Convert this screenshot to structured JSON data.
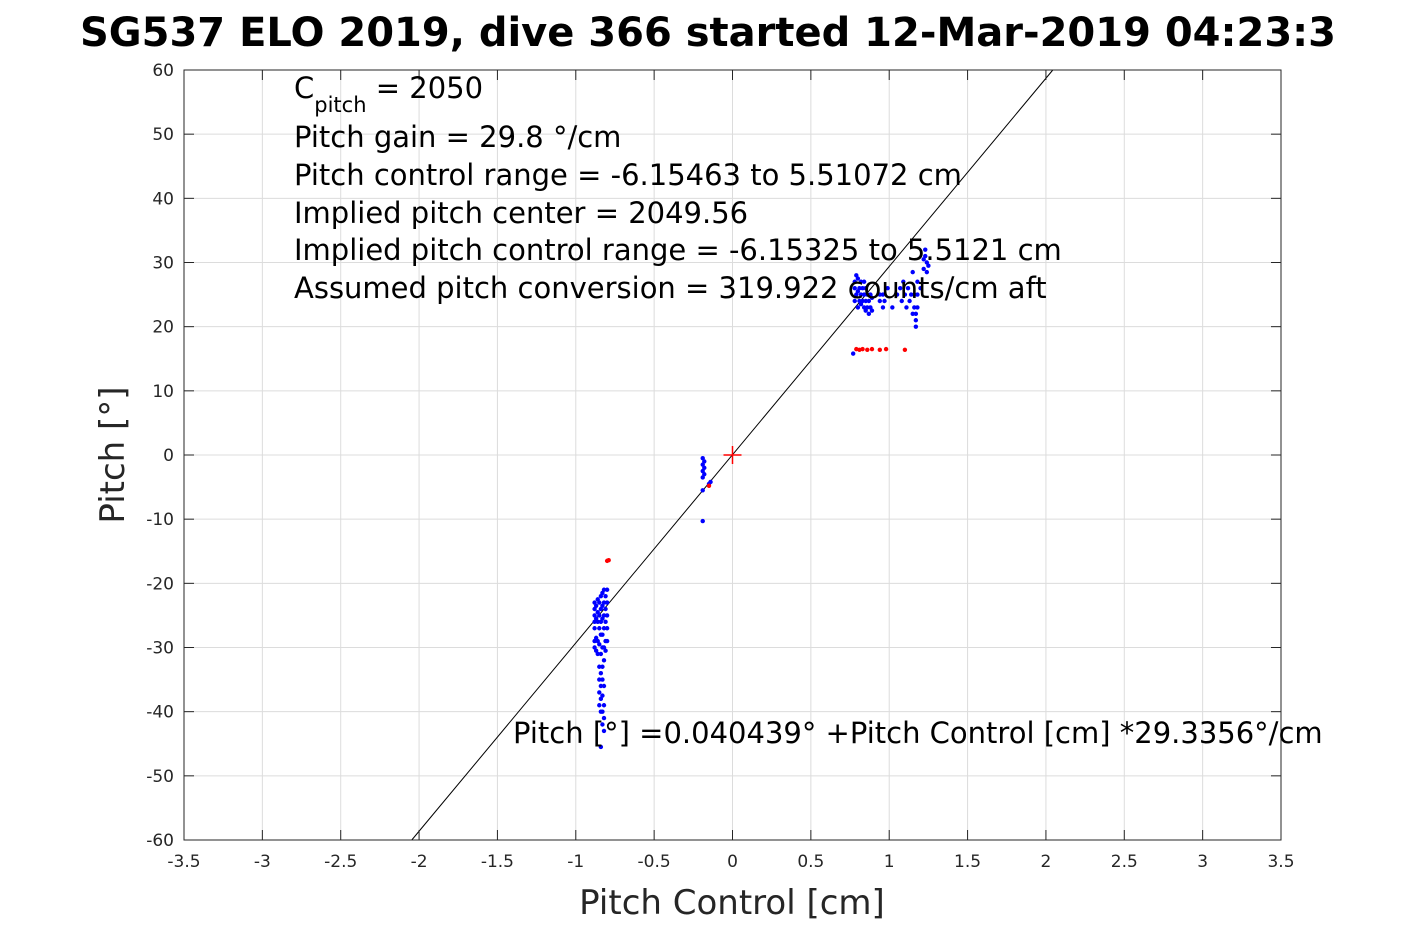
{
  "chart_data": {
    "type": "scatter",
    "title": "SG537 ELO 2019, dive 366 started 12-Mar-2019 04:23:3",
    "xlabel": "Pitch Control [cm]",
    "ylabel": "Pitch [°]",
    "xlim": [
      -3.5,
      3.5
    ],
    "ylim": [
      -60,
      60
    ],
    "xticks": [
      -3.5,
      -3,
      -2.5,
      -2,
      -1.5,
      -1,
      -0.5,
      0,
      0.5,
      1,
      1.5,
      2,
      2.5,
      3,
      3.5
    ],
    "yticks": [
      -60,
      -50,
      -40,
      -30,
      -20,
      -10,
      0,
      10,
      20,
      30,
      40,
      50,
      60
    ],
    "xtick_labels": [
      "-3.5",
      "-3",
      "-2.5",
      "-2",
      "-1.5",
      "-1",
      "-0.5",
      "0",
      "0.5",
      "1",
      "1.5",
      "2",
      "2.5",
      "3",
      "3.5"
    ],
    "ytick_labels": [
      "-60",
      "-50",
      "-40",
      "-30",
      "-20",
      "-10",
      "0",
      "10",
      "20",
      "30",
      "40",
      "50",
      "60"
    ],
    "grid": true,
    "colors": {
      "good": "#0000ff",
      "bad": "#ff0000",
      "fit": "#000000",
      "grid": "#dcdcdc"
    },
    "fit_line": {
      "intercept": 0.040439,
      "slope": 29.3356
    },
    "center_marker": {
      "x": 0,
      "y": 0
    },
    "annotations": {
      "cpitch_base": "C",
      "cpitch_sub": "pitch",
      "cpitch_rest": " = 2050",
      "gain": "Pitch gain = 29.8 °/cm",
      "range": "Pitch control range = -6.15463 to 5.51072 cm",
      "center": "Implied pitch center = 2049.56",
      "implied_range": "Implied pitch control range = -6.15325 to 5.5121 cm",
      "conversion": "Assumed pitch conversion = 319.922 counts/cm aft",
      "fit_equation": "Pitch [°] =0.040439° +Pitch Control [cm] *29.3356°/cm"
    },
    "series": [
      {
        "color": "#0000ff",
        "points": [
          [
            -0.88,
            -23
          ],
          [
            -0.88,
            -24
          ],
          [
            -0.88,
            -25
          ],
          [
            -0.88,
            -26
          ],
          [
            -0.88,
            -27
          ],
          [
            -0.88,
            -29
          ],
          [
            -0.88,
            -30
          ],
          [
            -0.87,
            -23.5
          ],
          [
            -0.87,
            -25.5
          ],
          [
            -0.87,
            -28.5
          ],
          [
            -0.87,
            -30.5
          ],
          [
            -0.86,
            -22.5
          ],
          [
            -0.86,
            -24.5
          ],
          [
            -0.86,
            -26
          ],
          [
            -0.86,
            -29
          ],
          [
            -0.86,
            -31
          ],
          [
            -0.85,
            -23
          ],
          [
            -0.85,
            -25
          ],
          [
            -0.85,
            -27
          ],
          [
            -0.85,
            -29.5
          ],
          [
            -0.85,
            -33
          ],
          [
            -0.85,
            -35
          ],
          [
            -0.85,
            -37
          ],
          [
            -0.85,
            -39
          ],
          [
            -0.84,
            -22
          ],
          [
            -0.84,
            -24
          ],
          [
            -0.84,
            -26
          ],
          [
            -0.84,
            -28
          ],
          [
            -0.84,
            -31
          ],
          [
            -0.84,
            -34
          ],
          [
            -0.84,
            -36
          ],
          [
            -0.84,
            -38
          ],
          [
            -0.84,
            -40
          ],
          [
            -0.84,
            -45.5
          ],
          [
            -0.83,
            -21.5
          ],
          [
            -0.83,
            -23.5
          ],
          [
            -0.83,
            -25.5
          ],
          [
            -0.83,
            -28
          ],
          [
            -0.83,
            -30
          ],
          [
            -0.83,
            -33
          ],
          [
            -0.83,
            -35
          ],
          [
            -0.83,
            -37.5
          ],
          [
            -0.83,
            -40
          ],
          [
            -0.83,
            -42
          ],
          [
            -0.82,
            -21
          ],
          [
            -0.82,
            -23
          ],
          [
            -0.82,
            -25
          ],
          [
            -0.82,
            -27
          ],
          [
            -0.82,
            -30
          ],
          [
            -0.82,
            -32
          ],
          [
            -0.82,
            -36
          ],
          [
            -0.82,
            -39
          ],
          [
            -0.82,
            -41
          ],
          [
            -0.82,
            -43
          ],
          [
            -0.81,
            -22
          ],
          [
            -0.81,
            -24
          ],
          [
            -0.81,
            -26
          ],
          [
            -0.81,
            -29
          ],
          [
            -0.81,
            -30.5
          ],
          [
            -0.8,
            -21
          ],
          [
            -0.8,
            -23
          ],
          [
            -0.8,
            -25
          ],
          [
            -0.8,
            -27
          ],
          [
            -0.8,
            -29
          ],
          [
            -0.19,
            -0.5
          ],
          [
            -0.19,
            -1.5
          ],
          [
            -0.19,
            -2.5
          ],
          [
            -0.19,
            -3.5
          ],
          [
            -0.19,
            -5.5
          ],
          [
            -0.19,
            -10.3
          ],
          [
            -0.18,
            -1
          ],
          [
            -0.18,
            -2
          ],
          [
            -0.18,
            -3
          ],
          [
            -0.15,
            -4.5
          ],
          [
            -0.14,
            -4.2
          ],
          [
            0.77,
            15.8
          ],
          [
            0.78,
            24
          ],
          [
            0.78,
            26
          ],
          [
            0.78,
            27
          ],
          [
            0.79,
            25
          ],
          [
            0.79,
            28
          ],
          [
            0.8,
            23
          ],
          [
            0.8,
            25.5
          ],
          [
            0.8,
            27.5
          ],
          [
            0.81,
            24
          ],
          [
            0.81,
            26
          ],
          [
            0.82,
            23.5
          ],
          [
            0.82,
            25
          ],
          [
            0.82,
            27
          ],
          [
            0.83,
            24
          ],
          [
            0.83,
            26
          ],
          [
            0.84,
            23
          ],
          [
            0.84,
            25
          ],
          [
            0.84,
            27
          ],
          [
            0.85,
            22.5
          ],
          [
            0.85,
            24
          ],
          [
            0.85,
            26
          ],
          [
            0.86,
            23
          ],
          [
            0.86,
            25
          ],
          [
            0.87,
            22
          ],
          [
            0.87,
            24
          ],
          [
            0.88,
            23
          ],
          [
            0.88,
            25
          ],
          [
            0.89,
            22.5
          ],
          [
            0.89,
            24.5
          ],
          [
            0.94,
            24
          ],
          [
            0.94,
            25
          ],
          [
            0.96,
            23
          ],
          [
            0.96,
            25
          ],
          [
            0.97,
            24
          ],
          [
            0.99,
            26
          ],
          [
            1.02,
            23
          ],
          [
            1.05,
            25
          ],
          [
            1.07,
            26
          ],
          [
            1.08,
            24
          ],
          [
            1.09,
            27
          ],
          [
            1.1,
            25
          ],
          [
            1.11,
            23
          ],
          [
            1.12,
            26
          ],
          [
            1.13,
            24
          ],
          [
            1.14,
            25
          ],
          [
            1.15,
            28.5
          ],
          [
            1.15,
            22
          ],
          [
            1.16,
            23
          ],
          [
            1.16,
            25
          ],
          [
            1.17,
            20
          ],
          [
            1.17,
            21
          ],
          [
            1.17,
            22
          ],
          [
            1.18,
            23
          ],
          [
            1.18,
            25
          ],
          [
            1.18,
            27
          ],
          [
            1.2,
            26
          ],
          [
            1.22,
            29
          ],
          [
            1.22,
            30.5
          ],
          [
            1.23,
            31
          ],
          [
            1.23,
            32
          ],
          [
            1.24,
            30
          ],
          [
            1.24,
            28.5
          ],
          [
            1.25,
            29.5
          ]
        ]
      },
      {
        "color": "#ff0000",
        "points": [
          [
            -0.8,
            -16.5
          ],
          [
            -0.79,
            -16.4
          ],
          [
            -0.15,
            -4.8
          ],
          [
            0.79,
            16.5
          ],
          [
            0.81,
            16.4
          ],
          [
            0.83,
            16.5
          ],
          [
            0.86,
            16.4
          ],
          [
            0.89,
            16.5
          ],
          [
            0.94,
            16.4
          ],
          [
            0.98,
            16.5
          ],
          [
            1.1,
            16.4
          ]
        ]
      }
    ]
  }
}
